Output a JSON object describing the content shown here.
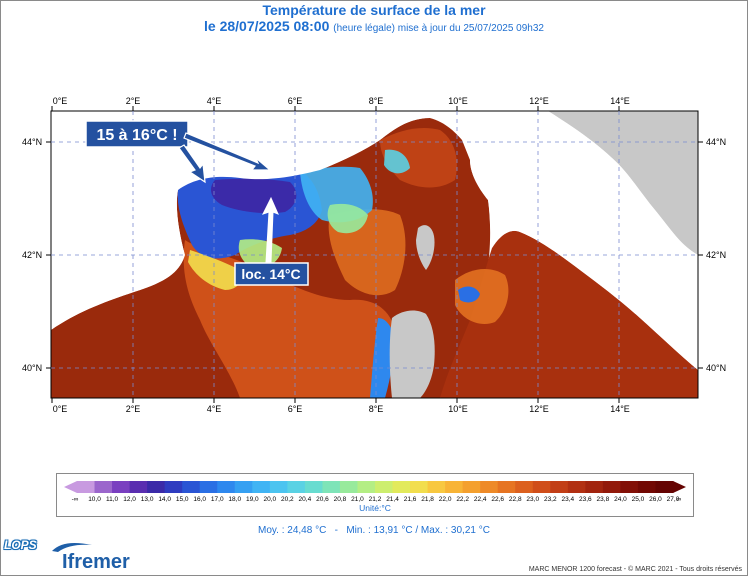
{
  "header": {
    "title": "Température de surface de la mer",
    "date": "le 28/07/2025 08:00",
    "note": "(heure légale) mise à jour du 25/07/2025 09h32"
  },
  "map": {
    "lon_labels": [
      "0°E",
      "2°E",
      "4°E",
      "6°E",
      "8°E",
      "10°E",
      "12°E",
      "14°E"
    ],
    "lat_labels": [
      "44°N",
      "42°N",
      "40°N"
    ],
    "annotations": {
      "warm_note": "15 à 16°C !",
      "cold_note": "loc. 14°C"
    },
    "colors": {
      "land": "#c8c8c8",
      "annotation_box": "#2451a0"
    }
  },
  "legend": {
    "low_end": "-∞",
    "high_end": "∞",
    "ticks": [
      "10,0",
      "11,0",
      "12,0",
      "13,0",
      "14,0",
      "15,0",
      "16,0",
      "17,0",
      "18,0",
      "19,0",
      "20,0",
      "20,2",
      "20,4",
      "20,6",
      "20,8",
      "21,0",
      "21,2",
      "21,4",
      "21,6",
      "21,8",
      "22,0",
      "22,2",
      "22,4",
      "22,6",
      "22,8",
      "23,0",
      "23,2",
      "23,4",
      "23,6",
      "23,8",
      "24,0",
      "25,0",
      "26,0",
      "27,0"
    ],
    "colors": [
      "#c89ae0",
      "#9b66cc",
      "#7a3fc0",
      "#5a2eb0",
      "#3b2aa8",
      "#2f3cc0",
      "#2a55d4",
      "#2a6fe4",
      "#2e88ee",
      "#35a0f2",
      "#40b4f4",
      "#4cc4f0",
      "#5ad2e4",
      "#68dcd0",
      "#7ee4b8",
      "#98ea9c",
      "#b4ee84",
      "#cdee6e",
      "#e2ea5c",
      "#f2de4e",
      "#f8c840",
      "#f8b436",
      "#f4a02e",
      "#ee8a28",
      "#e67422",
      "#dc601e",
      "#d04e1a",
      "#c23e16",
      "#b23012",
      "#a2240e",
      "#92190a",
      "#820f06",
      "#720803",
      "#650402"
    ],
    "unit": "Unité:°C"
  },
  "stats": {
    "mean": "Moy. : 24,48 °C",
    "separator": "-",
    "range": "Min. : 13,91 °C / Max. : 30,21 °C"
  },
  "footer": {
    "logo_lops": "LOPS",
    "logo_ifremer": "Ifremer",
    "copyright": "MARC MENOR 1200 forecast - © MARC 2021 - Tous droits réservés"
  }
}
